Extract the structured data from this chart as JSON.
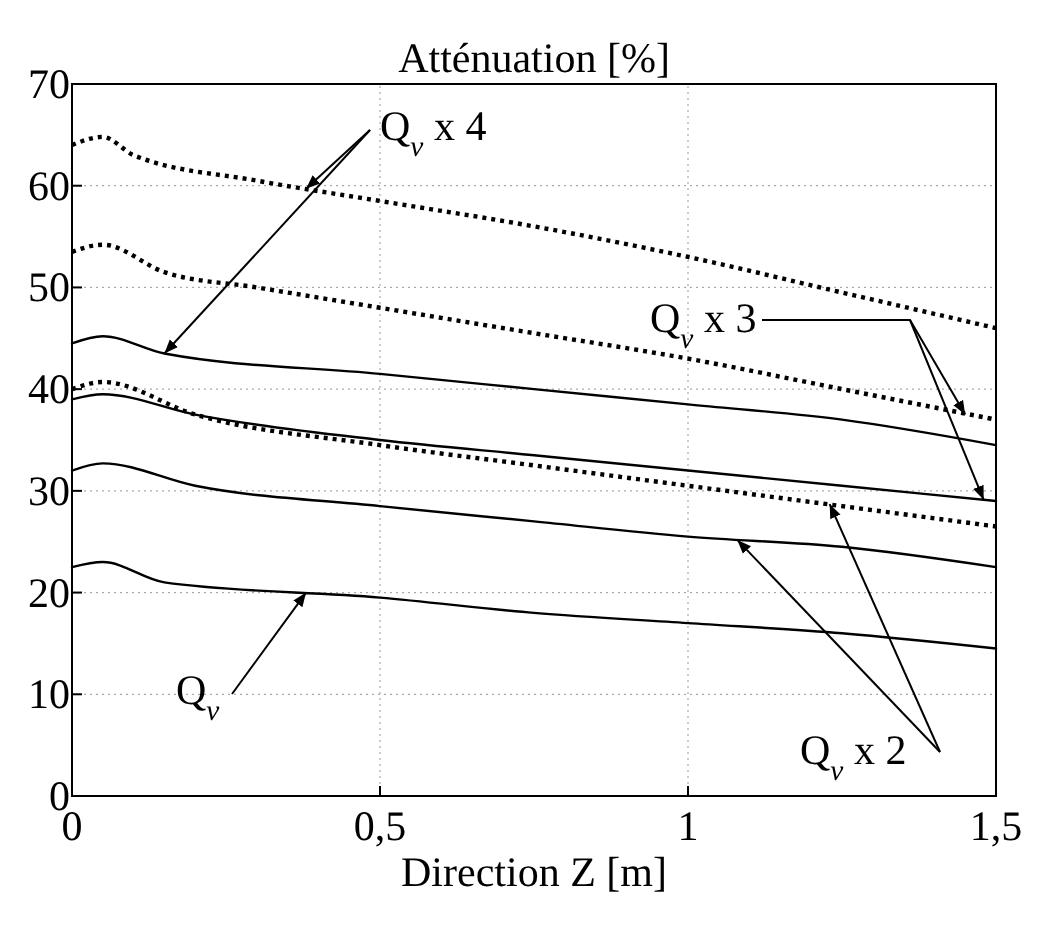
{
  "chart_data": {
    "type": "line",
    "title": "Atténuation [%]",
    "xlabel": "Direction Z [m]",
    "xlim": [
      0,
      1.5
    ],
    "ylim": [
      0,
      70
    ],
    "xticks": [
      0,
      {
        "value": 0.5,
        "label": "0,5"
      },
      1,
      {
        "value": 1.5,
        "label": "1,5"
      }
    ],
    "yticks": [
      0,
      10,
      20,
      30,
      40,
      50,
      60,
      70
    ],
    "grid": true,
    "series": [
      {
        "color": "#000000",
        "line_style": "dotted",
        "x": [
          0,
          0.05,
          0.1,
          0.3,
          0.5,
          0.75,
          1,
          1.25,
          1.5
        ],
        "values": [
          64,
          64.8,
          63,
          60.5,
          58.5,
          56,
          53,
          49.5,
          46
        ]
      },
      {
        "color": "#000000",
        "line_style": "dotted",
        "x": [
          0,
          0.05,
          0.15,
          0.3,
          0.5,
          0.75,
          1,
          1.25,
          1.5
        ],
        "values": [
          53.5,
          54.2,
          51.5,
          50,
          48,
          45.5,
          43,
          40,
          37
        ]
      },
      {
        "color": "#000000",
        "line_style": "solid",
        "x": [
          0,
          0.05,
          0.15,
          0.5,
          0.75,
          1,
          1.25,
          1.5
        ],
        "values": [
          44.5,
          45.2,
          43.5,
          41.5,
          40,
          38.5,
          37,
          34.5
        ]
      },
      {
        "color": "#000000",
        "line_style": "solid",
        "x": [
          0,
          0.05,
          0.2,
          0.5,
          0.75,
          1,
          1.25,
          1.5
        ],
        "values": [
          39,
          39.5,
          37.5,
          35,
          33.5,
          32,
          30.5,
          29
        ]
      },
      {
        "color": "#000000",
        "line_style": "dotted",
        "x": [
          0,
          0.05,
          0.2,
          0.5,
          0.75,
          1,
          1.25,
          1.5
        ],
        "values": [
          40,
          40.7,
          37.5,
          34.5,
          32.5,
          30.5,
          28.5,
          26.5
        ]
      },
      {
        "color": "#000000",
        "line_style": "solid",
        "x": [
          0,
          0.05,
          0.2,
          0.5,
          0.75,
          1,
          1.25,
          1.5
        ],
        "values": [
          32,
          32.7,
          30.5,
          28.5,
          27,
          25.5,
          24.5,
          22.5
        ]
      },
      {
        "color": "#000000",
        "line_style": "solid",
        "x": [
          0,
          0.05,
          0.15,
          0.5,
          0.75,
          1,
          1.25,
          1.5
        ],
        "values": [
          22.5,
          23,
          21,
          19.5,
          18,
          17,
          16,
          14.5
        ]
      }
    ],
    "annotations": [
      {
        "text": "Q$_{v}$ x 4",
        "x": 0.15,
        "y": 43.5
      },
      {
        "text": "Q$_{v}$ x 3",
        "x": 1.45,
        "y": 37.5
      },
      {
        "text": "Q$_{v}$ x 2",
        "x": 1.23,
        "y": 28.7
      },
      {
        "text": "Q$_{v}$",
        "x": 0.38,
        "y": 20
      }
    ]
  }
}
